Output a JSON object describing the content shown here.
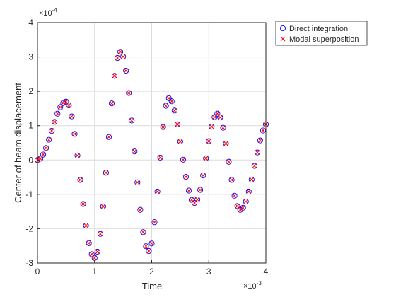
{
  "chart_data": {
    "type": "scatter",
    "xlabel": "Time",
    "ylabel": "Center of beam displacement",
    "x_multiplier": {
      "base": "×10",
      "exponent": "-3"
    },
    "y_multiplier": {
      "base": "×10",
      "exponent": "-4"
    },
    "x": [
      0,
      0.05,
      0.1,
      0.15,
      0.2,
      0.25,
      0.3,
      0.35,
      0.4,
      0.45,
      0.5,
      0.55,
      0.6,
      0.65,
      0.7,
      0.75,
      0.8,
      0.85,
      0.9,
      0.95,
      1.0,
      1.05,
      1.1,
      1.15,
      1.2,
      1.25,
      1.3,
      1.35,
      1.4,
      1.45,
      1.5,
      1.55,
      1.6,
      1.65,
      1.7,
      1.75,
      1.8,
      1.85,
      1.9,
      1.95,
      2.0,
      2.05,
      2.1,
      2.15,
      2.2,
      2.25,
      2.3,
      2.35,
      2.4,
      2.45,
      2.5,
      2.55,
      2.6,
      2.65,
      2.7,
      2.75,
      2.8,
      2.85,
      2.9,
      2.95,
      3.0,
      3.05,
      3.1,
      3.15,
      3.2,
      3.25,
      3.3,
      3.35,
      3.4,
      3.45,
      3.5,
      3.55,
      3.6,
      3.65,
      3.7,
      3.75,
      3.8,
      3.85,
      3.9,
      3.95,
      4.0
    ],
    "series": [
      {
        "name": "Direct integration",
        "color": "#0000ff",
        "marker": "circle",
        "values": [
          0,
          0.04,
          0.16,
          0.35,
          0.59,
          0.85,
          1.11,
          1.35,
          1.54,
          1.66,
          1.7,
          1.59,
          1.27,
          0.76,
          0.13,
          -0.58,
          -1.28,
          -1.91,
          -2.42,
          -2.74,
          -2.85,
          -2.67,
          -2.15,
          -1.35,
          -0.37,
          0.67,
          1.65,
          2.45,
          2.97,
          3.15,
          3.01,
          2.6,
          1.95,
          1.15,
          0.25,
          -0.65,
          -1.45,
          -2.1,
          -2.51,
          -2.65,
          -2.43,
          -1.81,
          -0.92,
          0.07,
          0.96,
          1.58,
          1.8,
          1.71,
          1.44,
          1.04,
          0.54,
          0.01,
          -0.49,
          -0.89,
          -1.16,
          -1.25,
          -1.15,
          -0.87,
          -0.45,
          0.05,
          0.55,
          0.97,
          1.25,
          1.35,
          1.24,
          0.94,
          0.48,
          -0.05,
          -0.58,
          -1.04,
          -1.34,
          -1.45,
          -1.39,
          -1.21,
          -0.92,
          -0.57,
          -0.17,
          0.22,
          0.57,
          0.86,
          1.04
        ]
      },
      {
        "name": "Modal superposition",
        "color": "#ff0000",
        "marker": "x",
        "values": [
          0,
          0.04,
          0.16,
          0.35,
          0.59,
          0.85,
          1.11,
          1.35,
          1.54,
          1.66,
          1.7,
          1.59,
          1.27,
          0.76,
          0.13,
          -0.58,
          -1.28,
          -1.91,
          -2.42,
          -2.74,
          -2.85,
          -2.67,
          -2.15,
          -1.35,
          -0.37,
          0.67,
          1.65,
          2.45,
          2.97,
          3.15,
          3.01,
          2.6,
          1.95,
          1.15,
          0.25,
          -0.65,
          -1.45,
          -2.1,
          -2.51,
          -2.65,
          -2.43,
          -1.81,
          -0.92,
          0.07,
          0.96,
          1.58,
          1.8,
          1.71,
          1.44,
          1.04,
          0.54,
          0.01,
          -0.49,
          -0.89,
          -1.16,
          -1.25,
          -1.15,
          -0.87,
          -0.45,
          0.05,
          0.55,
          0.97,
          1.25,
          1.35,
          1.24,
          0.94,
          0.48,
          -0.05,
          -0.58,
          -1.04,
          -1.34,
          -1.45,
          -1.39,
          -1.21,
          -0.92,
          -0.57,
          -0.17,
          0.22,
          0.57,
          0.86,
          1.04
        ]
      }
    ],
    "xlim": [
      0,
      4
    ],
    "xticks": [
      0,
      1,
      2,
      3,
      4
    ],
    "ylim": [
      -3,
      4
    ],
    "yticks": [
      -3,
      -2,
      -1,
      0,
      1,
      2,
      3,
      4
    ],
    "grid": true,
    "legend": "outside-northeast"
  }
}
